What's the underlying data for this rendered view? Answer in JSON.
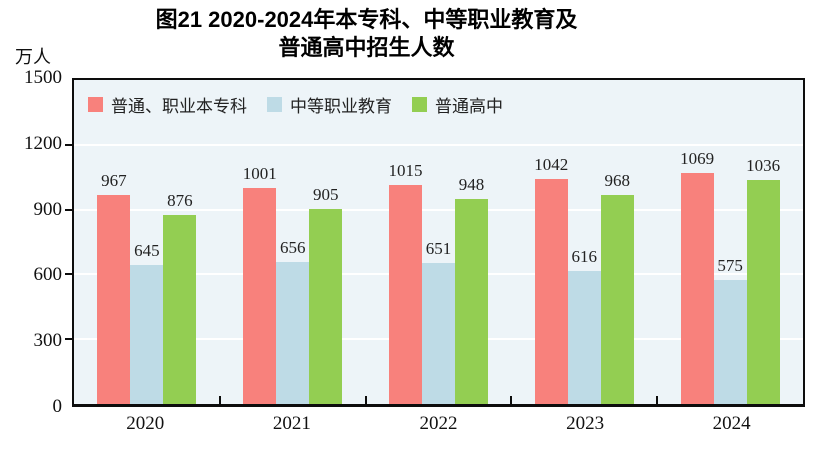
{
  "title": {
    "line1": "图21  2020-2024年本专科、中等职业教育及",
    "line2": "普通高中招生人数"
  },
  "y_unit": "万人",
  "colors": {
    "plot_background": "#EDF4F8",
    "gridline": "#FFFFFF",
    "axis_border": "#0D0D0D",
    "series_benzhuanke": "#F8817C",
    "series_zhongzhi": "#BEDBE6",
    "series_gaozhong": "#93CE52"
  },
  "chart_data": {
    "type": "bar",
    "title": "图21 2020-2024年本专科、中等职业教育及普通高中招生人数",
    "xlabel": "",
    "ylabel": "万人",
    "categories": [
      "2020",
      "2021",
      "2022",
      "2023",
      "2024"
    ],
    "series": [
      {
        "name": "普通、职业本专科",
        "color": "#F8817C",
        "values": [
          967,
          1001,
          1015,
          1042,
          1069
        ]
      },
      {
        "name": "中等职业教育",
        "color": "#BEDBE6",
        "values": [
          645,
          656,
          651,
          616,
          575
        ]
      },
      {
        "name": "普通高中",
        "color": "#93CE52",
        "values": [
          876,
          905,
          948,
          968,
          1036
        ]
      }
    ],
    "ylim": [
      0,
      1500
    ],
    "yticks": [
      0,
      300,
      600,
      900,
      1200,
      1500
    ],
    "grid": "horizontal",
    "legend_position": "top-left-inside",
    "value_labels": "above-bars"
  }
}
